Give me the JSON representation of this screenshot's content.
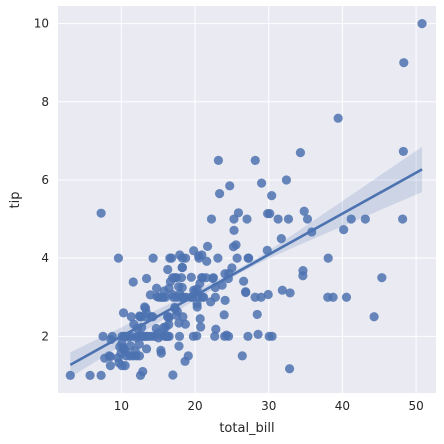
{
  "chart_data": {
    "type": "scatter",
    "title": "",
    "xlabel": "total_bill",
    "ylabel": "tip",
    "xlim": [
      1.4,
      52.7
    ],
    "ylim": [
      0.55,
      10.45
    ],
    "xticks": [
      10,
      20,
      30,
      40,
      50
    ],
    "yticks": [
      2,
      4,
      6,
      8,
      10
    ],
    "grid": true,
    "colors": {
      "plot_background": "#eaeaf2",
      "grid": "#ffffff",
      "points": "#4c72b0",
      "regression_line": "#4c72b0",
      "confidence_band": "#4c72b0"
    },
    "regression": {
      "x_start": 3.07,
      "y_start": 1.27,
      "x_end": 50.81,
      "y_end": 6.27,
      "ci_half_width_start": 0.32,
      "ci_half_width_mid": 0.07,
      "ci_half_width_end": 0.58
    },
    "points": [
      [
        3.07,
        1.0
      ],
      [
        5.75,
        1.0
      ],
      [
        7.25,
        1.0
      ],
      [
        7.25,
        5.15
      ],
      [
        7.51,
        2.0
      ],
      [
        7.74,
        1.44
      ],
      [
        8.35,
        1.5
      ],
      [
        8.51,
        1.25
      ],
      [
        8.52,
        1.48
      ],
      [
        8.58,
        1.92
      ],
      [
        8.77,
        2.0
      ],
      [
        9.55,
        1.45
      ],
      [
        9.6,
        4.0
      ],
      [
        9.68,
        1.32
      ],
      [
        9.78,
        1.73
      ],
      [
        9.94,
        1.56
      ],
      [
        10.07,
        1.25
      ],
      [
        10.07,
        1.83
      ],
      [
        10.09,
        2.0
      ],
      [
        10.27,
        1.71
      ],
      [
        10.29,
        2.6
      ],
      [
        10.33,
        1.67
      ],
      [
        10.34,
        2.0
      ],
      [
        10.34,
        1.66
      ],
      [
        10.51,
        1.25
      ],
      [
        10.59,
        1.61
      ],
      [
        10.63,
        2.0
      ],
      [
        10.65,
        1.5
      ],
      [
        11.02,
        1.98
      ],
      [
        11.17,
        1.5
      ],
      [
        11.24,
        1.76
      ],
      [
        11.35,
        2.5
      ],
      [
        11.38,
        2.0
      ],
      [
        11.59,
        1.5
      ],
      [
        11.61,
        3.39
      ],
      [
        11.69,
        2.31
      ],
      [
        11.87,
        1.63
      ],
      [
        12.02,
        1.97
      ],
      [
        12.03,
        1.5
      ],
      [
        12.16,
        2.2
      ],
      [
        12.26,
        2.0
      ],
      [
        12.43,
        1.8
      ],
      [
        12.46,
        1.5
      ],
      [
        12.48,
        2.52
      ],
      [
        12.54,
        2.5
      ],
      [
        12.6,
        1.0
      ],
      [
        12.66,
        2.5
      ],
      [
        12.69,
        2.0
      ],
      [
        12.74,
        2.01
      ],
      [
        12.76,
        2.23
      ],
      [
        12.9,
        1.1
      ],
      [
        13.0,
        2.0
      ],
      [
        13.03,
        2.0
      ],
      [
        13.13,
        2.0
      ],
      [
        13.16,
        2.75
      ],
      [
        13.27,
        2.5
      ],
      [
        13.28,
        2.72
      ],
      [
        13.37,
        2.0
      ],
      [
        13.39,
        2.61
      ],
      [
        13.42,
        1.68
      ],
      [
        13.42,
        3.48
      ],
      [
        13.51,
        2.0
      ],
      [
        13.81,
        2.0
      ],
      [
        13.94,
        3.06
      ],
      [
        14.07,
        2.5
      ],
      [
        14.15,
        2.0
      ],
      [
        14.26,
        2.5
      ],
      [
        14.31,
        4.0
      ],
      [
        14.52,
        2.0
      ],
      [
        14.73,
        2.2
      ],
      [
        14.78,
        3.23
      ],
      [
        14.83,
        3.02
      ],
      [
        15.01,
        2.09
      ],
      [
        15.04,
        1.96
      ],
      [
        15.06,
        3.0
      ],
      [
        15.36,
        1.64
      ],
      [
        15.38,
        3.0
      ],
      [
        15.42,
        1.57
      ],
      [
        15.48,
        2.02
      ],
      [
        15.53,
        3.0
      ],
      [
        15.69,
        3.0
      ],
      [
        15.77,
        2.23
      ],
      [
        15.81,
        3.16
      ],
      [
        15.95,
        2.0
      ],
      [
        15.98,
        2.03
      ],
      [
        15.98,
        3.0
      ],
      [
        16.0,
        2.0
      ],
      [
        16.04,
        2.24
      ],
      [
        16.21,
        2.0
      ],
      [
        16.27,
        2.5
      ],
      [
        16.29,
        3.71
      ],
      [
        16.31,
        2.0
      ],
      [
        16.4,
        2.5
      ],
      [
        16.43,
        2.3
      ],
      [
        16.45,
        2.47
      ],
      [
        16.47,
        3.23
      ],
      [
        16.49,
        2.0
      ],
      [
        16.58,
        4.0
      ],
      [
        16.66,
        3.4
      ],
      [
        16.82,
        4.0
      ],
      [
        16.93,
        3.07
      ],
      [
        16.97,
        3.5
      ],
      [
        16.99,
        1.01
      ],
      [
        17.07,
        3.0
      ],
      [
        17.26,
        2.74
      ],
      [
        17.29,
        2.71
      ],
      [
        17.31,
        3.5
      ],
      [
        17.46,
        2.54
      ],
      [
        17.47,
        3.5
      ],
      [
        17.51,
        3.0
      ],
      [
        17.59,
        2.64
      ],
      [
        17.78,
        3.27
      ],
      [
        17.81,
        2.34
      ],
      [
        17.82,
        1.75
      ],
      [
        17.89,
        2.0
      ],
      [
        17.92,
        4.08
      ],
      [
        17.92,
        3.08
      ],
      [
        18.04,
        3.0
      ],
      [
        18.15,
        3.5
      ],
      [
        18.24,
        3.76
      ],
      [
        18.26,
        3.25
      ],
      [
        18.28,
        4.0
      ],
      [
        18.29,
        3.76
      ],
      [
        18.29,
        3.0
      ],
      [
        18.35,
        2.5
      ],
      [
        18.43,
        3.0
      ],
      [
        18.64,
        1.36
      ],
      [
        18.69,
        2.31
      ],
      [
        18.71,
        4.0
      ],
      [
        18.78,
        3.0
      ],
      [
        19.08,
        1.5
      ],
      [
        19.44,
        3.0
      ],
      [
        19.49,
        3.51
      ],
      [
        19.65,
        3.0
      ],
      [
        19.77,
        2.0
      ],
      [
        19.81,
        4.19
      ],
      [
        19.82,
        3.18
      ],
      [
        20.08,
        3.15
      ],
      [
        20.23,
        2.01
      ],
      [
        20.27,
        2.83
      ],
      [
        20.29,
        2.75
      ],
      [
        20.29,
        3.21
      ],
      [
        20.45,
        3.0
      ],
      [
        20.49,
        4.06
      ],
      [
        20.53,
        4.0
      ],
      [
        20.65,
        3.35
      ],
      [
        20.69,
        2.45
      ],
      [
        20.76,
        2.24
      ],
      [
        20.9,
        3.5
      ],
      [
        20.92,
        4.08
      ],
      [
        21.01,
        3.5
      ],
      [
        21.01,
        3.0
      ],
      [
        21.16,
        3.0
      ],
      [
        21.5,
        3.5
      ],
      [
        21.58,
        3.92
      ],
      [
        21.7,
        4.3
      ],
      [
        22.12,
        2.88
      ],
      [
        22.23,
        5.0
      ],
      [
        22.42,
        3.48
      ],
      [
        22.49,
        3.5
      ],
      [
        22.67,
        2.0
      ],
      [
        22.75,
        3.25
      ],
      [
        22.76,
        3.0
      ],
      [
        22.82,
        2.18
      ],
      [
        23.1,
        4.0
      ],
      [
        23.17,
        6.5
      ],
      [
        23.33,
        5.65
      ],
      [
        23.68,
        3.31
      ],
      [
        23.95,
        2.55
      ],
      [
        24.01,
        2.0
      ],
      [
        24.06,
        3.6
      ],
      [
        24.08,
        2.92
      ],
      [
        24.27,
        2.03
      ],
      [
        24.52,
        3.48
      ],
      [
        24.55,
        2.0
      ],
      [
        24.59,
        3.61
      ],
      [
        24.71,
        5.85
      ],
      [
        25.0,
        3.75
      ],
      [
        25.21,
        4.29
      ],
      [
        25.28,
        5.0
      ],
      [
        25.29,
        4.71
      ],
      [
        25.56,
        4.34
      ],
      [
        25.71,
        4.0
      ],
      [
        25.89,
        5.16
      ],
      [
        26.41,
        1.5
      ],
      [
        26.59,
        3.41
      ],
      [
        26.86,
        3.14
      ],
      [
        26.88,
        3.12
      ],
      [
        27.05,
        5.0
      ],
      [
        27.18,
        2.0
      ],
      [
        27.2,
        4.0
      ],
      [
        27.28,
        4.0
      ],
      [
        28.15,
        3.0
      ],
      [
        28.17,
        6.5
      ],
      [
        28.44,
        2.56
      ],
      [
        28.55,
        2.05
      ],
      [
        28.97,
        3.0
      ],
      [
        29.03,
        5.92
      ],
      [
        29.8,
        4.2
      ],
      [
        29.85,
        5.14
      ],
      [
        29.93,
        3.07
      ],
      [
        30.06,
        2.0
      ],
      [
        30.14,
        5.14
      ],
      [
        30.4,
        5.6
      ],
      [
        30.46,
        2.0
      ],
      [
        31.27,
        5.0
      ],
      [
        31.71,
        4.5
      ],
      [
        31.85,
        3.18
      ],
      [
        32.4,
        6.0
      ],
      [
        32.68,
        5.0
      ],
      [
        32.83,
        1.17
      ],
      [
        32.9,
        3.11
      ],
      [
        34.3,
        6.7
      ],
      [
        34.63,
        3.55
      ],
      [
        34.65,
        3.68
      ],
      [
        34.81,
        5.2
      ],
      [
        35.26,
        5.0
      ],
      [
        35.83,
        4.67
      ],
      [
        38.01,
        3.0
      ],
      [
        38.07,
        4.0
      ],
      [
        38.73,
        3.0
      ],
      [
        39.42,
        7.58
      ],
      [
        40.17,
        4.73
      ],
      [
        40.55,
        3.0
      ],
      [
        41.19,
        5.0
      ],
      [
        43.11,
        5.0
      ],
      [
        44.3,
        2.5
      ],
      [
        45.35,
        3.5
      ],
      [
        48.17,
        5.0
      ],
      [
        48.27,
        6.73
      ],
      [
        48.33,
        9.0
      ],
      [
        50.81,
        10.0
      ]
    ]
  }
}
